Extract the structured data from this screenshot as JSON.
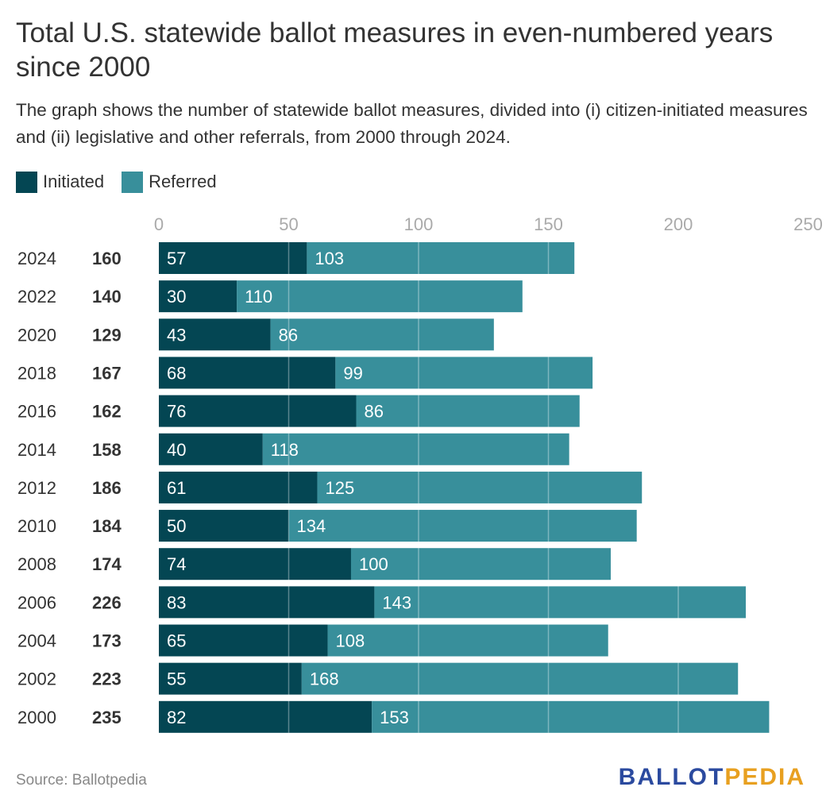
{
  "title": "Total U.S. statewide ballot measures in even-numbered years since 2000",
  "subtitle": "The graph shows the number of statewide ballot measures, divided into (i) citizen-initiated measures and (ii) legislative and other referrals, from 2000 through 2024.",
  "source": "Source: Ballotpedia",
  "logo": {
    "part1": "BALLOT",
    "part2": "PEDIA"
  },
  "colors": {
    "initiated": "#044653",
    "referred": "#388f9b",
    "gridline": "#c8c8c8",
    "logo_ballot": "#2b4a9f",
    "logo_pedia": "#e8a020"
  },
  "chart_data": {
    "type": "bar",
    "orientation": "horizontal",
    "stacked": true,
    "categories": [
      "2024",
      "2022",
      "2020",
      "2018",
      "2016",
      "2014",
      "2012",
      "2010",
      "2008",
      "2006",
      "2004",
      "2002",
      "2000"
    ],
    "totals": [
      160,
      140,
      129,
      167,
      162,
      158,
      186,
      184,
      174,
      226,
      173,
      223,
      235
    ],
    "series": [
      {
        "name": "Initiated",
        "values": [
          57,
          30,
          43,
          68,
          76,
          40,
          61,
          50,
          74,
          83,
          65,
          55,
          82
        ]
      },
      {
        "name": "Referred",
        "values": [
          103,
          110,
          86,
          99,
          86,
          118,
          125,
          134,
          100,
          143,
          108,
          168,
          153
        ]
      }
    ],
    "xticks": [
      0,
      50,
      100,
      150,
      200,
      250
    ],
    "xlim": [
      0,
      250
    ],
    "legend_position": "top-left",
    "grid": true
  }
}
